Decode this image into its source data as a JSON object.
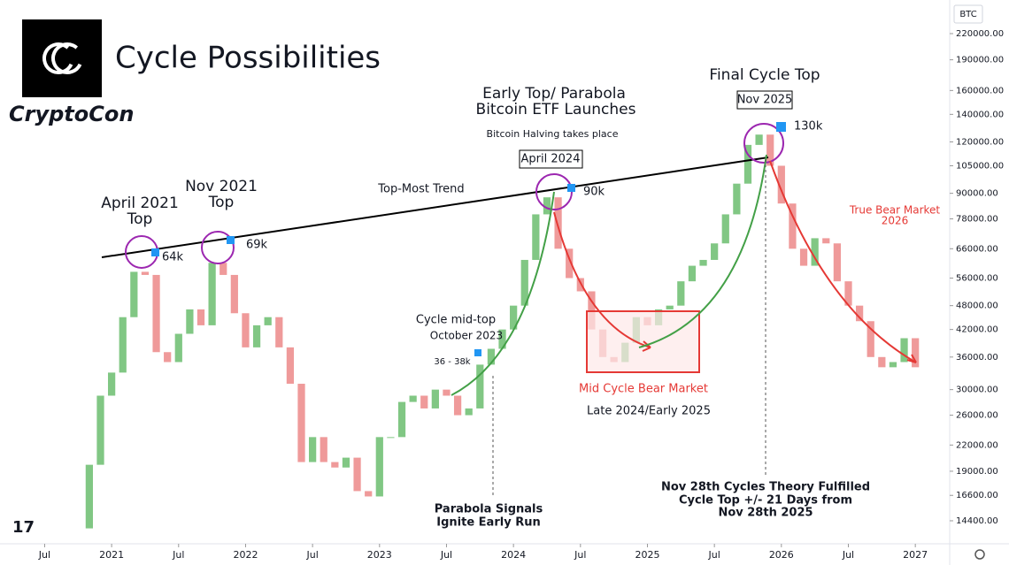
{
  "chart_data": {
    "type": "candlestick",
    "title": "Cycle Possibilities",
    "brand": "CryptoCon",
    "symbol": "BTC",
    "log_scale": true,
    "grid": false,
    "up_color": "#81c784",
    "down_color": "#ef9a9a",
    "x": [
      "2020-10",
      "2020-11",
      "2020-12",
      "2021-01",
      "2021-02",
      "2021-03",
      "2021-04",
      "2021-05",
      "2021-06",
      "2021-07",
      "2021-08",
      "2021-09",
      "2021-10",
      "2021-11",
      "2021-12",
      "2022-01",
      "2022-02",
      "2022-03",
      "2022-04",
      "2022-05",
      "2022-06",
      "2022-07",
      "2022-08",
      "2022-09",
      "2022-10",
      "2022-11",
      "2022-12",
      "2023-01",
      "2023-02",
      "2023-03",
      "2023-04",
      "2023-05",
      "2023-06",
      "2023-07",
      "2023-08",
      "2023-09",
      "2023-10",
      "2023-11",
      "2023-12",
      "2024-01",
      "2024-02",
      "2024-03",
      "2024-04",
      "2024-05",
      "2024-06",
      "2024-07",
      "2024-08",
      "2024-09",
      "2024-10",
      "2024-11",
      "2024-12",
      "2025-01",
      "2025-02",
      "2025-03",
      "2025-04",
      "2025-05",
      "2025-06",
      "2025-07",
      "2025-08",
      "2025-09",
      "2025-10",
      "2025-11",
      "2025-12",
      "2026-01",
      "2026-02",
      "2026-03",
      "2026-04",
      "2026-05",
      "2026-06",
      "2026-07",
      "2026-08",
      "2026-09",
      "2026-10",
      "2026-11",
      "2026-12",
      "2027-01"
    ],
    "values": [
      13800,
      19700,
      29000,
      33000,
      45000,
      58000,
      57000,
      37000,
      35000,
      41000,
      47000,
      43000,
      61000,
      57000,
      46000,
      38000,
      43000,
      45000,
      38000,
      31000,
      20000,
      23000,
      20000,
      19400,
      20500,
      17000,
      16500,
      23000,
      23000,
      28000,
      29000,
      27000,
      30000,
      29000,
      26000,
      27000,
      34500,
      37700,
      42000,
      48000,
      62000,
      80000,
      88000,
      66000,
      56000,
      52000,
      42000,
      36000,
      35000,
      39000,
      45000,
      43000,
      47000,
      48000,
      55000,
      60000,
      62000,
      68000,
      80000,
      95000,
      118000,
      125000,
      105000,
      85000,
      66000,
      60000,
      70000,
      68000,
      55000,
      48000,
      44000,
      36000,
      34000,
      35000,
      40000,
      34000
    ],
    "xlim": [
      "2020-03",
      "2027-04"
    ],
    "xticks": [
      {
        "value": "2020-07",
        "label": "Jul"
      },
      {
        "value": "2021-01",
        "label": "2021"
      },
      {
        "value": "2021-07",
        "label": "Jul"
      },
      {
        "value": "2022-01",
        "label": "2022"
      },
      {
        "value": "2022-07",
        "label": "Jul"
      },
      {
        "value": "2023-01",
        "label": "2023"
      },
      {
        "value": "2023-07",
        "label": "Jul"
      },
      {
        "value": "2024-01",
        "label": "2024"
      },
      {
        "value": "2024-07",
        "label": "Jul"
      },
      {
        "value": "2025-01",
        "label": "2025"
      },
      {
        "value": "2025-07",
        "label": "Jul"
      },
      {
        "value": "2026-01",
        "label": "2026"
      },
      {
        "value": "2026-07",
        "label": "Jul"
      },
      {
        "value": "2027-01",
        "label": "2027"
      }
    ],
    "ylim": [
      12660,
      265500
    ],
    "yticks": [
      {
        "value": 220000,
        "label": "220000.00"
      },
      {
        "value": 190000,
        "label": "190000.00"
      },
      {
        "value": 160000,
        "label": "160000.00"
      },
      {
        "value": 140000,
        "label": "140000.00"
      },
      {
        "value": 120000,
        "label": "120000.00"
      },
      {
        "value": 105000,
        "label": "105000.00"
      },
      {
        "value": 90000,
        "label": "90000.00"
      },
      {
        "value": 78000,
        "label": "78000.00"
      },
      {
        "value": 66000,
        "label": "66000.00"
      },
      {
        "value": 56000,
        "label": "56000.00"
      },
      {
        "value": 48000,
        "label": "48000.00"
      },
      {
        "value": 42000,
        "label": "42000.00"
      },
      {
        "value": 36000,
        "label": "36000.00"
      },
      {
        "value": 30000,
        "label": "30000.00"
      },
      {
        "value": 26000,
        "label": "26000.00"
      },
      {
        "value": 22000,
        "label": "22000.00"
      },
      {
        "value": 19000,
        "label": "19000.00"
      },
      {
        "value": 16600,
        "label": "16600.00"
      },
      {
        "value": 14400,
        "label": "14400.00"
      }
    ],
    "annotations": [
      "April 2021",
      "Top",
      "Nov 2021",
      "Top",
      "64k",
      "69k",
      "Top-Most Trend",
      "Early Top/ Parabola",
      "Bitcoin ETF Launches",
      "Bitcoin Halving takes place",
      "April 2024",
      "90k",
      "Final Cycle Top",
      "Nov 2025",
      "130k",
      "True Bear Market",
      "2026",
      "Cycle mid-top",
      "October 2023",
      "36 - 38k",
      "Mid Cycle Bear Market",
      "Late 2024/Early 2025",
      "Parabola Signals",
      "Ignite Early Run",
      "Nov 28th Cycles Theory Fulfilled",
      "Cycle Top +/- 21 Days from",
      "Nov 28th 2025"
    ]
  }
}
